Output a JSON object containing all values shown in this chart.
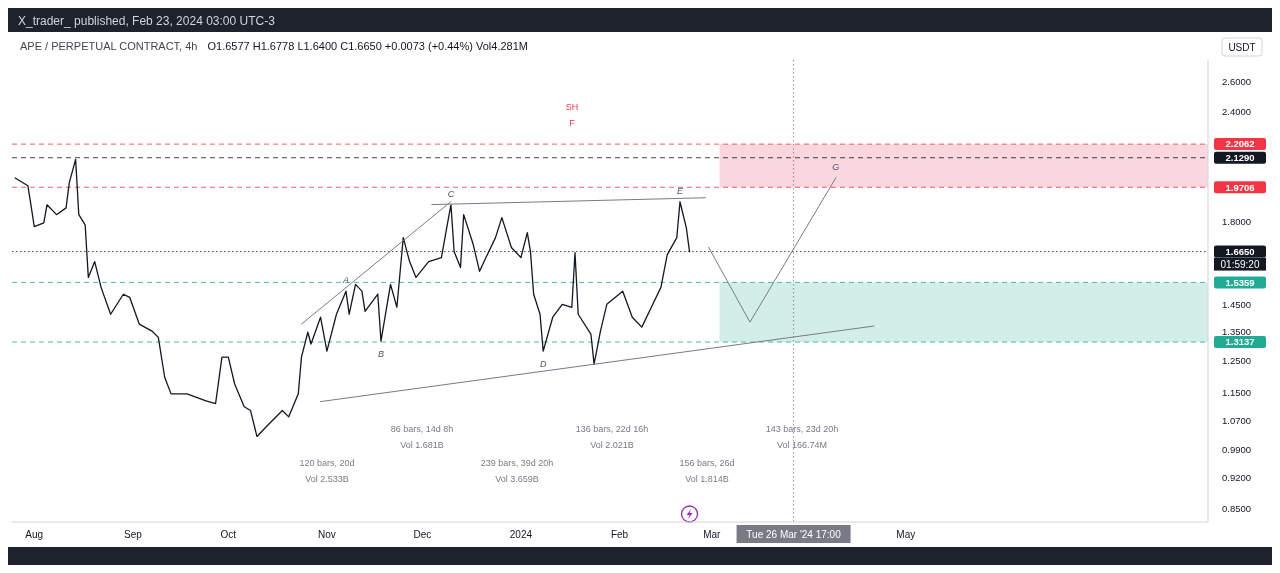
{
  "chart_data": {
    "type": "line",
    "title": "APE / PERPETUAL CONTRACT, 4h",
    "subtitle": "O1.6577 H1.6778 L1.6400 C1.6650 +0.0073 (+0.44%) Vol4.281M",
    "ylabel": "USDT",
    "log": true,
    "grid": false,
    "marker": "none",
    "xlim": [
      "2023-07-25",
      "2024-08-04"
    ],
    "xticks": [
      {
        "value": "2023-08-01",
        "label": "Aug"
      },
      {
        "value": "2023-09-01",
        "label": "Sep"
      },
      {
        "value": "2023-10-01",
        "label": "Oct"
      },
      {
        "value": "2023-11-01",
        "label": "Nov"
      },
      {
        "value": "2023-12-01",
        "label": "Dec"
      },
      {
        "value": "2024-01-01",
        "label": "2024"
      },
      {
        "value": "2024-02-01",
        "label": "Feb"
      },
      {
        "value": "2024-03-01",
        "label": "Mar"
      },
      {
        "value": "2024-05-01",
        "label": "May"
      }
    ],
    "ylim": [
      0.82,
      2.75
    ],
    "yticks": [
      {
        "value": 0.85,
        "label": "0.8500"
      },
      {
        "value": 0.92,
        "label": "0.9200"
      },
      {
        "value": 0.99,
        "label": "0.9900"
      },
      {
        "value": 1.07,
        "label": "1.0700"
      },
      {
        "value": 1.15,
        "label": "1.1500"
      },
      {
        "value": 1.25,
        "label": "1.2500"
      },
      {
        "value": 1.35,
        "label": "1.3500"
      },
      {
        "value": 1.45,
        "label": "1.4500"
      },
      {
        "value": 1.8,
        "label": "1.8000"
      },
      {
        "value": 2.4,
        "label": "2.4000"
      },
      {
        "value": 2.6,
        "label": "2.6000"
      }
    ],
    "series": [
      {
        "color": "#131722",
        "x": [
          "2023-07-26",
          "2023-07-30",
          "2023-07-31",
          "2023-08-01",
          "2023-08-04",
          "2023-08-05",
          "2023-08-08",
          "2023-08-11",
          "2023-08-12",
          "2023-08-14",
          "2023-08-15",
          "2023-08-17",
          "2023-08-18",
          "2023-08-20",
          "2023-08-22",
          "2023-08-25",
          "2023-08-29",
          "2023-08-31",
          "2023-09-03",
          "2023-09-07",
          "2023-09-09",
          "2023-09-11",
          "2023-09-13",
          "2023-09-18",
          "2023-09-24",
          "2023-09-27",
          "2023-09-29",
          "2023-10-01",
          "2023-10-03",
          "2023-10-06",
          "2023-10-08",
          "2023-10-10",
          "2023-10-13",
          "2023-10-18",
          "2023-10-20",
          "2023-10-23",
          "2023-10-24",
          "2023-10-26",
          "2023-10-27",
          "2023-10-30",
          "2023-11-01",
          "2023-11-04",
          "2023-11-07",
          "2023-11-08",
          "2023-11-10",
          "2023-11-12",
          "2023-11-13",
          "2023-11-17",
          "2023-11-18",
          "2023-11-21",
          "2023-11-23",
          "2023-11-25",
          "2023-11-27",
          "2023-11-29",
          "2023-12-03",
          "2023-12-07",
          "2023-12-09",
          "2023-12-10",
          "2023-12-11",
          "2023-12-13",
          "2023-12-14",
          "2023-12-17",
          "2023-12-19",
          "2023-12-21",
          "2023-12-24",
          "2023-12-26",
          "2023-12-29",
          "2024-01-01",
          "2024-01-03",
          "2024-01-04",
          "2024-01-05",
          "2024-01-07",
          "2024-01-08",
          "2024-01-11",
          "2024-01-14",
          "2024-01-17",
          "2024-01-18",
          "2024-01-19",
          "2024-01-23",
          "2024-01-24",
          "2024-01-26",
          "2024-01-28",
          "2024-02-02",
          "2024-02-05",
          "2024-02-08",
          "2024-02-11",
          "2024-02-14",
          "2024-02-16",
          "2024-02-19",
          "2024-02-20",
          "2024-02-22",
          "2024-02-23"
        ],
        "values": [
          2.019,
          1.978,
          1.877,
          1.777,
          1.795,
          1.882,
          1.834,
          1.867,
          1.993,
          2.12,
          1.834,
          1.786,
          1.556,
          1.622,
          1.516,
          1.413,
          1.489,
          1.477,
          1.377,
          1.352,
          1.33,
          1.198,
          1.147,
          1.147,
          1.126,
          1.118,
          1.263,
          1.263,
          1.177,
          1.109,
          1.098,
          1.026,
          1.053,
          1.098,
          1.08,
          1.147,
          1.263,
          1.348,
          1.307,
          1.402,
          1.283,
          1.413,
          1.501,
          1.413,
          1.528,
          1.501,
          1.424,
          1.489,
          1.317,
          1.528,
          1.439,
          1.727,
          1.622,
          1.556,
          1.622,
          1.639,
          1.8,
          1.882,
          1.665,
          1.597,
          1.834,
          1.696,
          1.581,
          1.639,
          1.727,
          1.82,
          1.683,
          1.639,
          1.75,
          1.665,
          1.489,
          1.413,
          1.283,
          1.402,
          1.45,
          1.439,
          1.66,
          1.413,
          1.341,
          1.24,
          1.352,
          1.45,
          1.501,
          1.402,
          1.366,
          1.439,
          1.516,
          1.652,
          1.727,
          1.897,
          1.772,
          1.665
        ]
      },
      {
        "color": "#787b86",
        "x": [
          "2023-10-30",
          "2024-04-21"
        ],
        "values": [
          1.124,
          1.37
        ]
      },
      {
        "color": "#787b86",
        "x": [
          "2023-12-04",
          "2024-02-28"
        ],
        "values": [
          1.883,
          1.917
        ]
      },
      {
        "color": "#787b86",
        "x": [
          "2023-10-24",
          "2023-12-10"
        ],
        "values": [
          1.377,
          1.898
        ]
      },
      {
        "color": "#787b86",
        "x": [
          "2024-02-29",
          "2024-03-13",
          "2024-04-09"
        ],
        "values": [
          1.684,
          1.384,
          2.02
        ]
      }
    ],
    "ref_lines": [
      {
        "axis": "y",
        "value": 2.2062,
        "label": "2.2062",
        "color": "#f23645",
        "line_style": "dashed"
      },
      {
        "axis": "y",
        "value": 2.129,
        "label": "2.1290",
        "color": "#131722",
        "line_style": "dashed"
      },
      {
        "axis": "y",
        "value": 1.9706,
        "label": "1.9706",
        "color": "#f23645",
        "line_style": "dashed"
      },
      {
        "axis": "y",
        "value": 1.665,
        "label": "1.6650",
        "color": "#131722",
        "line_style": "dotted"
      },
      {
        "axis": "y",
        "value": 1.5359,
        "label": "1.5359",
        "color": "#22ab94",
        "line_style": "dashed"
      },
      {
        "axis": "y",
        "value": 1.3137,
        "label": "1.3137",
        "color": "#22ab94",
        "line_style": "dashed"
      },
      {
        "axis": "x",
        "value": "2024-03-26T17:00",
        "label": "Tue 26 Mar '24 17:00",
        "color": "#787b86",
        "line_style": "dotted"
      }
    ],
    "bands": [
      {
        "axis": "y",
        "from": 1.9706,
        "to": 2.2062,
        "color": "#f8c8d4"
      },
      {
        "axis": "y",
        "from": 1.3137,
        "to": 1.5359,
        "color": "#c4e8e2"
      }
    ],
    "annotations": [
      "X_trader_ published, Feb 23, 2024 03:00 UTC-3",
      "01:59:20",
      "SH",
      "F",
      "120 bars, 20d",
      "Vol 2.533B",
      "86 bars, 14d 8h",
      "Vol 1.681B",
      "239 bars, 39d 20h",
      "Vol 3.659B",
      "136 bars, 22d 16h",
      "Vol 2.021B",
      "156 bars, 26d",
      "Vol 1.814B",
      "143 bars, 23d 20h",
      "Vol 166.74M",
      {
        "text": "A",
        "x": "2023-11-07",
        "y": 1.501
      },
      {
        "text": "B",
        "x": "2023-11-18",
        "y": 1.317
      },
      {
        "text": "C",
        "x": "2023-12-10",
        "y": 1.882
      },
      {
        "text": "D",
        "x": "2024-01-08",
        "y": 1.283
      },
      {
        "text": "E",
        "x": "2024-02-20",
        "y": 1.897
      },
      {
        "text": "G",
        "x": "2024-04-09",
        "y": 2.02
      }
    ]
  }
}
